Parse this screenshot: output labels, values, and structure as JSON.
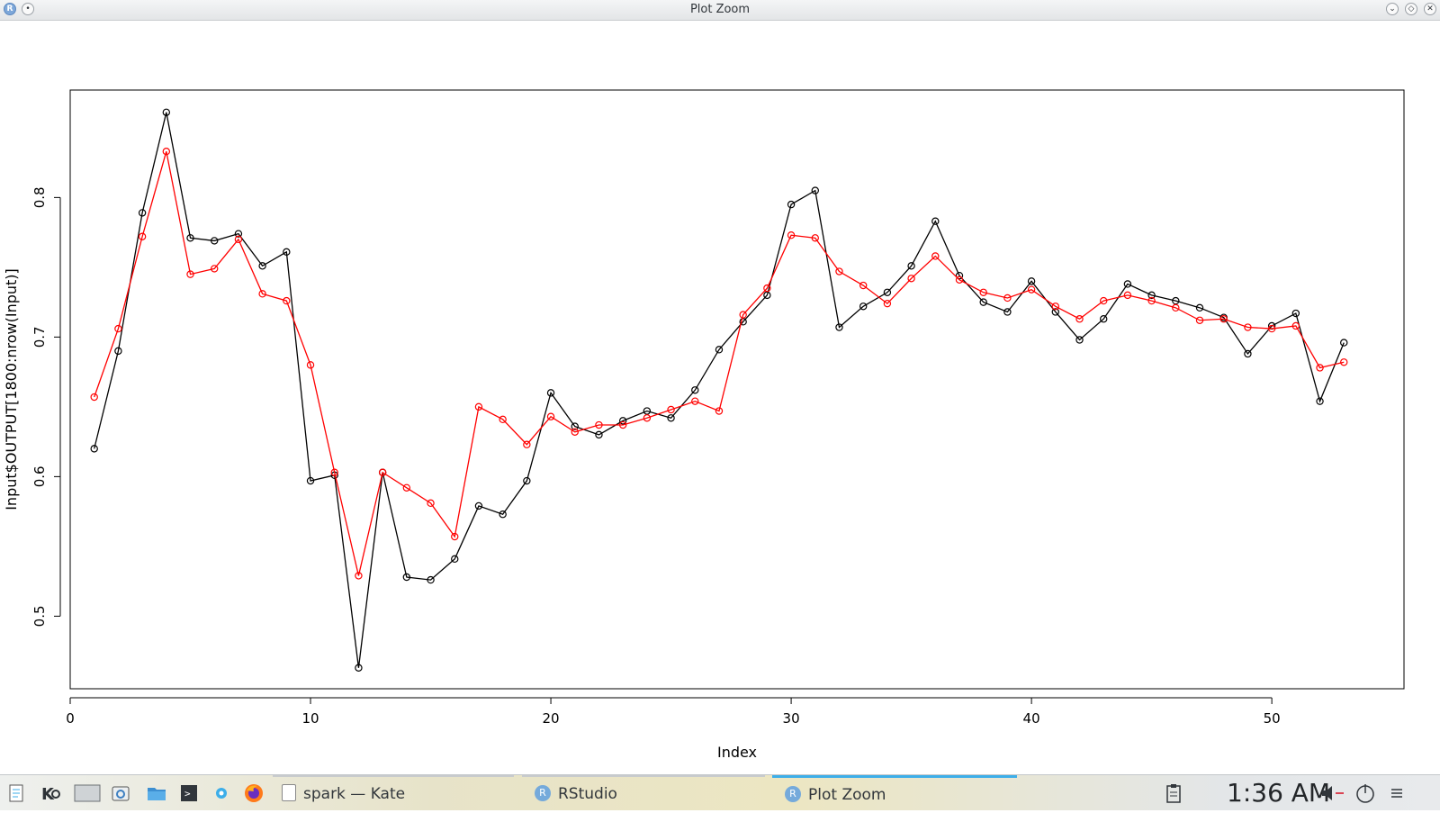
{
  "window": {
    "title": "Plot Zoom",
    "app_icon": "r-icon",
    "buttons": [
      "pin-icon",
      "minimize-icon",
      "maximize-icon",
      "close-icon"
    ]
  },
  "chart_data": {
    "type": "line",
    "title": "",
    "xlabel": "Index",
    "ylabel": "Input$OUTPUT[1800:nrow(Input)]",
    "xlim": [
      0,
      55.5
    ],
    "ylim": [
      0.448,
      0.877
    ],
    "xticks": [
      0,
      10,
      20,
      30,
      40,
      50
    ],
    "yticks": [
      0.5,
      0.6,
      0.7,
      0.8
    ],
    "grid": false,
    "legend": "none",
    "marker": "open-circle",
    "x": [
      1,
      2,
      3,
      4,
      5,
      6,
      7,
      8,
      9,
      10,
      11,
      12,
      13,
      14,
      15,
      16,
      17,
      18,
      19,
      20,
      21,
      22,
      23,
      24,
      25,
      26,
      27,
      28,
      29,
      30,
      31,
      32,
      33,
      34,
      35,
      36,
      37,
      38,
      39,
      40,
      41,
      42,
      43,
      44,
      45,
      46,
      47,
      48,
      49,
      50,
      51,
      52,
      53
    ],
    "series": [
      {
        "color": "#000000",
        "values": [
          0.62,
          0.69,
          0.789,
          0.861,
          0.771,
          0.769,
          0.774,
          0.751,
          0.761,
          0.597,
          0.601,
          0.463,
          0.603,
          0.528,
          0.526,
          0.541,
          0.579,
          0.573,
          0.597,
          0.66,
          0.636,
          0.63,
          0.64,
          0.647,
          0.642,
          0.662,
          0.691,
          0.711,
          0.73,
          0.795,
          0.805,
          0.707,
          0.722,
          0.732,
          0.751,
          0.783,
          0.744,
          0.725,
          0.718,
          0.74,
          0.718,
          0.698,
          0.713,
          0.738,
          0.73,
          0.726,
          0.721,
          0.714,
          0.688,
          0.708,
          0.717,
          0.654,
          0.696
        ]
      },
      {
        "color": "#ff0000",
        "values": [
          0.657,
          0.706,
          0.772,
          0.833,
          0.745,
          0.749,
          0.77,
          0.731,
          0.726,
          0.68,
          0.603,
          0.529,
          0.603,
          0.592,
          0.581,
          0.557,
          0.65,
          0.641,
          0.623,
          0.643,
          0.632,
          0.637,
          0.637,
          0.642,
          0.648,
          0.654,
          0.647,
          0.716,
          0.735,
          0.773,
          0.771,
          0.747,
          0.737,
          0.724,
          0.742,
          0.758,
          0.741,
          0.732,
          0.728,
          0.734,
          0.722,
          0.713,
          0.726,
          0.73,
          0.726,
          0.721,
          0.712,
          0.713,
          0.707,
          0.706,
          0.708,
          0.678,
          0.682
        ]
      }
    ]
  },
  "taskbar": {
    "launchers": [
      "document-icon",
      "kde-icon",
      "desktop-icon",
      "screenshot-icon",
      "folder-icon",
      "terminal-icon",
      "settings-icon",
      "firefox-icon"
    ],
    "tasks": [
      {
        "label": "spark — Kate",
        "icon": "text-editor-icon"
      },
      {
        "label": "RStudio",
        "icon": "r-icon"
      },
      {
        "label": "Plot Zoom",
        "icon": "r-icon"
      }
    ],
    "clock": "1:36 AM",
    "tray": [
      "clipboard-icon",
      "volume-icon",
      "power-icon",
      "menu-icon"
    ]
  }
}
